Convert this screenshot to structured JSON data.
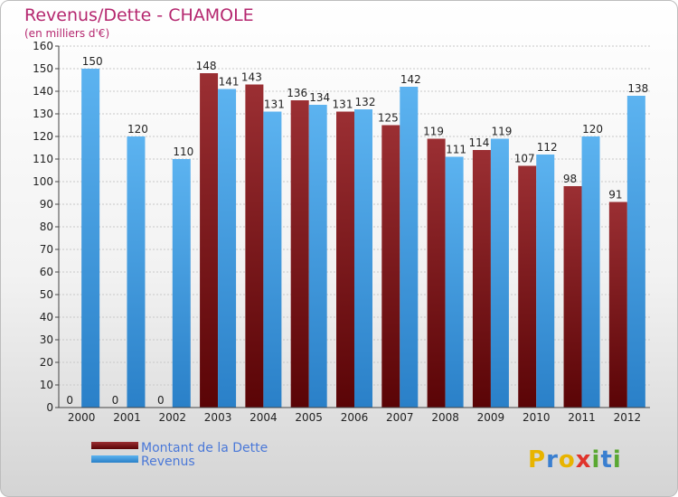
{
  "chart_data": {
    "type": "bar",
    "title": "Revenus/Dette - CHAMOLE",
    "subtitle": "(en milliers d'€)",
    "categories": [
      "2000",
      "2001",
      "2002",
      "2003",
      "2004",
      "2005",
      "2006",
      "2007",
      "2008",
      "2009",
      "2010",
      "2011",
      "2012"
    ],
    "series": [
      {
        "name": "Montant de la Dette",
        "color": "#6e0f13",
        "values": [
          0,
          0,
          0,
          148,
          143,
          136,
          131,
          125,
          119,
          114,
          107,
          98,
          91
        ]
      },
      {
        "name": "Revenus",
        "color": "#3a9ae5",
        "values": [
          150,
          120,
          110,
          141,
          131,
          134,
          132,
          142,
          111,
          119,
          112,
          120,
          138
        ]
      }
    ],
    "ylim": [
      0,
      160
    ],
    "yticks": [
      0,
      10,
      20,
      30,
      40,
      50,
      60,
      70,
      80,
      90,
      100,
      110,
      120,
      130,
      140,
      150,
      160
    ],
    "grid": true,
    "legend_position": "bottom-left"
  },
  "logo_text": "Proxiti",
  "logo_colors": [
    "#e8b400",
    "#3a7fd0",
    "#e0342c",
    "#5aa832"
  ]
}
